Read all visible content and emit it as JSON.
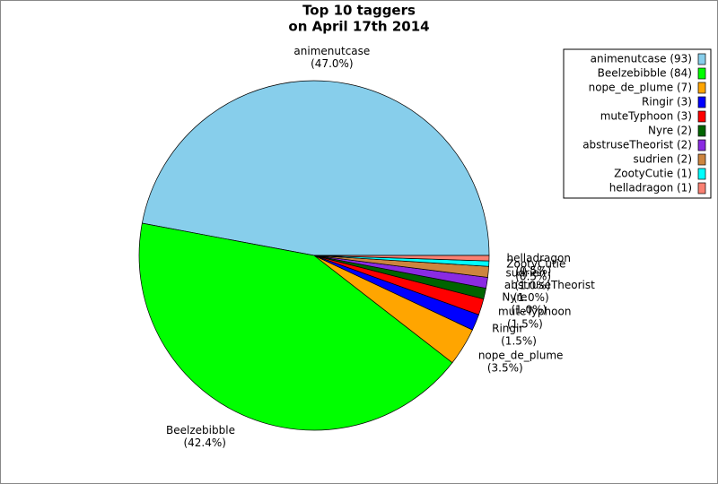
{
  "chart_data": {
    "type": "pie",
    "title": "Top 10 taggers",
    "subtitle": "on April 17th 2014",
    "categories": [
      "animenutcase",
      "Beelzebibble",
      "nope_de_plume",
      "Ringir",
      "muteTyphoon",
      "Nyre",
      "abstruseTheorist",
      "sudrien",
      "ZootyCutie",
      "helladragon"
    ],
    "values": [
      47.0,
      42.4,
      3.5,
      1.5,
      1.5,
      1.0,
      1.0,
      1.0,
      0.5,
      0.5
    ],
    "value_labels": [
      "(47.0%)",
      "(42.4%)",
      "(3.5%)",
      "(1.5%)",
      "(1.5%)",
      "(1.0%)",
      "(1.0%)",
      "(1.0%)",
      "(0.5%)",
      "(0.5%)"
    ],
    "legend_labels": [
      "animenutcase (93)",
      "Beelzebibble (84)",
      "nope_de_plume (7)",
      "Ringir (3)",
      "muteTyphoon (3)",
      "Nyre (2)",
      "abstruseTheorist (2)",
      "sudrien (2)",
      "ZootyCutie (1)",
      "helladragon (1)"
    ],
    "colors": [
      "#87ceeb",
      "#00ff00",
      "#ffa500",
      "#0000ff",
      "#ff0000",
      "#006400",
      "#8a2be2",
      "#cd853f",
      "#00ffff",
      "#fa8072"
    ],
    "legend_position": "upper right"
  }
}
